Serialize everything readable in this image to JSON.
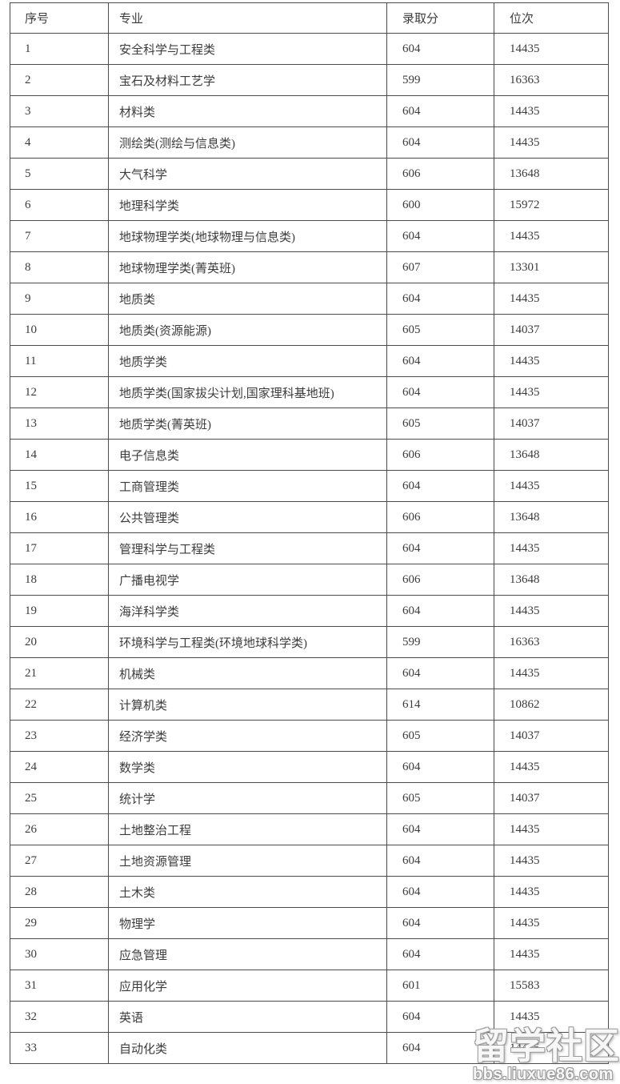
{
  "colors": {
    "background": "#ffffff",
    "text": "#3c3c3c",
    "border": "#4c4c4c",
    "watermark_fill": "#ffffff",
    "watermark_outline": "#9b9b9b"
  },
  "table": {
    "headers": [
      "序号",
      "专业",
      "录取分",
      "位次"
    ],
    "rows": [
      {
        "no": "1",
        "major": "安全科学与工程类",
        "score": "604",
        "rank": "14435"
      },
      {
        "no": "2",
        "major": "宝石及材料工艺学",
        "score": "599",
        "rank": "16363"
      },
      {
        "no": "3",
        "major": "材料类",
        "score": "604",
        "rank": "14435"
      },
      {
        "no": "4",
        "major": "测绘类(测绘与信息类)",
        "score": "604",
        "rank": "14435"
      },
      {
        "no": "5",
        "major": "大气科学",
        "score": "606",
        "rank": "13648"
      },
      {
        "no": "6",
        "major": "地理科学类",
        "score": "600",
        "rank": "15972"
      },
      {
        "no": "7",
        "major": "地球物理学类(地球物理与信息类)",
        "score": "604",
        "rank": "14435"
      },
      {
        "no": "8",
        "major": "地球物理学类(菁英班)",
        "score": "607",
        "rank": "13301"
      },
      {
        "no": "9",
        "major": "地质类",
        "score": "604",
        "rank": "14435"
      },
      {
        "no": "10",
        "major": "地质类(资源能源)",
        "score": "605",
        "rank": "14037"
      },
      {
        "no": "11",
        "major": "地质学类",
        "score": "604",
        "rank": "14435"
      },
      {
        "no": "12",
        "major": "地质学类(国家拔尖计划,国家理科基地班)",
        "score": "604",
        "rank": "14435"
      },
      {
        "no": "13",
        "major": "地质学类(菁英班)",
        "score": "605",
        "rank": "14037"
      },
      {
        "no": "14",
        "major": "电子信息类",
        "score": "606",
        "rank": "13648"
      },
      {
        "no": "15",
        "major": "工商管理类",
        "score": "604",
        "rank": "14435"
      },
      {
        "no": "16",
        "major": "公共管理类",
        "score": "606",
        "rank": "13648"
      },
      {
        "no": "17",
        "major": "管理科学与工程类",
        "score": "604",
        "rank": "14435"
      },
      {
        "no": "18",
        "major": "广播电视学",
        "score": "606",
        "rank": "13648"
      },
      {
        "no": "19",
        "major": "海洋科学类",
        "score": "604",
        "rank": "14435"
      },
      {
        "no": "20",
        "major": "环境科学与工程类(环境地球科学类)",
        "score": "599",
        "rank": "16363"
      },
      {
        "no": "21",
        "major": "机械类",
        "score": "604",
        "rank": "14435"
      },
      {
        "no": "22",
        "major": "计算机类",
        "score": "614",
        "rank": "10862"
      },
      {
        "no": "23",
        "major": "经济学类",
        "score": "605",
        "rank": "14037"
      },
      {
        "no": "24",
        "major": "数学类",
        "score": "604",
        "rank": "14435"
      },
      {
        "no": "25",
        "major": "统计学",
        "score": "605",
        "rank": "14037"
      },
      {
        "no": "26",
        "major": "土地整治工程",
        "score": "604",
        "rank": "14435"
      },
      {
        "no": "27",
        "major": "土地资源管理",
        "score": "604",
        "rank": "14435"
      },
      {
        "no": "28",
        "major": "土木类",
        "score": "604",
        "rank": "14435"
      },
      {
        "no": "29",
        "major": "物理学",
        "score": "604",
        "rank": "14435"
      },
      {
        "no": "30",
        "major": "应急管理",
        "score": "604",
        "rank": "14435"
      },
      {
        "no": "31",
        "major": "应用化学",
        "score": "601",
        "rank": "15583"
      },
      {
        "no": "32",
        "major": "英语",
        "score": "604",
        "rank": "14435"
      },
      {
        "no": "33",
        "major": "自动化类",
        "score": "604",
        "rank": "14435"
      }
    ]
  },
  "watermark": {
    "title": "留学社区",
    "url": "bbs.liuxue86.com"
  }
}
